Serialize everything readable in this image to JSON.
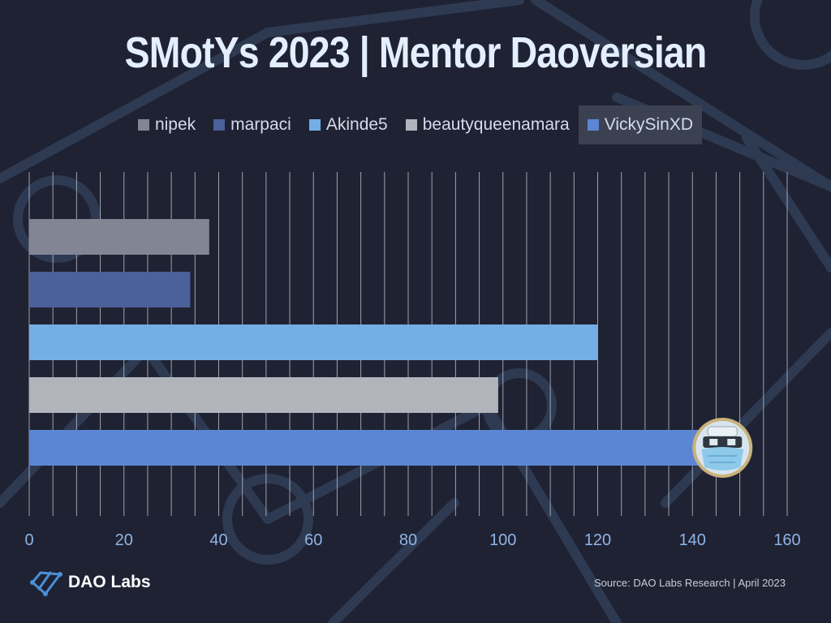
{
  "title": "SMotYs 2023 | Mentor Daoversian",
  "chart_data": {
    "type": "bar",
    "orientation": "horizontal",
    "title": "SMotYs 2023 | Mentor Daoversian",
    "xlim": [
      0,
      160
    ],
    "xticks": [
      "0",
      "20",
      "40",
      "60",
      "80",
      "100",
      "120",
      "140",
      "160"
    ],
    "grid": true,
    "legend_position": "top",
    "series": [
      {
        "name": "nipek",
        "value": 38,
        "color": "#828594"
      },
      {
        "name": "marpaci",
        "value": 34,
        "color": "#4a6199"
      },
      {
        "name": "Akinde5",
        "value": 120,
        "color": "#74aee6"
      },
      {
        "name": "beautyqueenamara",
        "value": 99,
        "color": "#b2b4bb"
      },
      {
        "name": "VickySinXD",
        "value": 146,
        "color": "#5c86d4"
      }
    ],
    "highlighted_series": "VickySinXD"
  },
  "footer": {
    "brand": "DAO Labs",
    "source": "Source: DAO Labs Research | April 2023"
  }
}
